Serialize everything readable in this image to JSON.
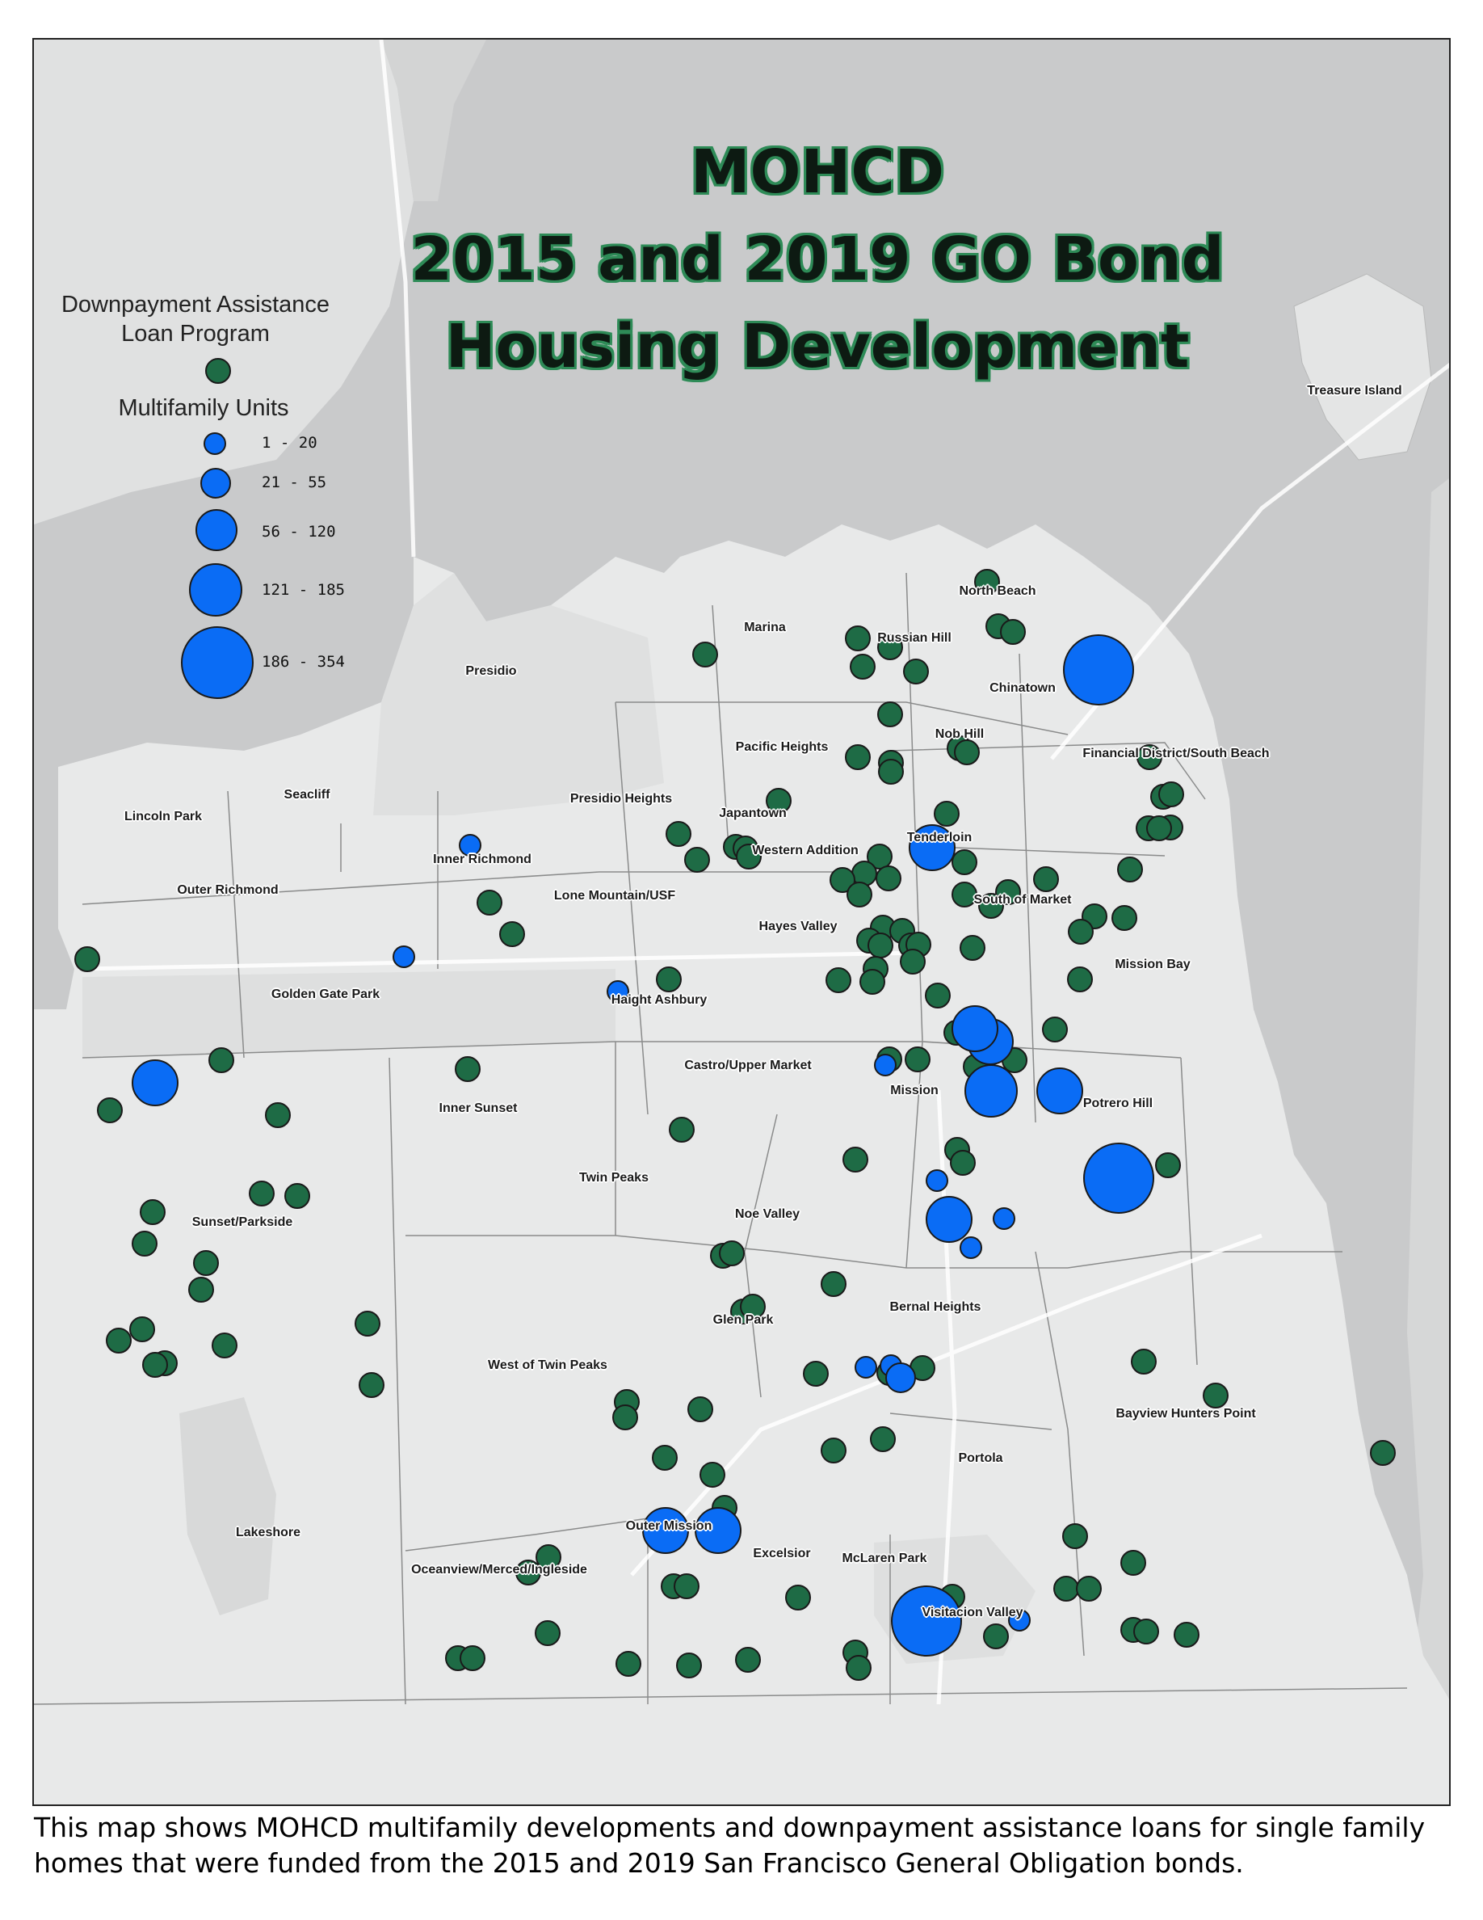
{
  "title": {
    "line1": "MOHCD",
    "line2": "2015 and 2019 GO Bond",
    "line3": "Housing Development"
  },
  "legend": {
    "dpa_heading": "Downpayment Assistance Loan Program",
    "multifamily_heading": "Multifamily Units",
    "classes": [
      "1 - 20",
      "21 - 55",
      "56 - 120",
      "121 - 185",
      "186 - 354"
    ]
  },
  "colors": {
    "water": "#c9cacb",
    "land": "#e8e9e9",
    "park": "#dcdddd",
    "dpa_green": "#1e6b45",
    "multifamily_blue": "#0a6cf5"
  },
  "neighborhoods": [
    "North Beach",
    "Russian Hill",
    "Marina",
    "Chinatown",
    "Presidio",
    "Nob Hill",
    "Pacific Heights",
    "Financial District/South Beach",
    "Seacliff",
    "Lincoln Park",
    "Presidio Heights",
    "Japantown",
    "Tenderloin",
    "Inner Richmond",
    "Western Addition",
    "Outer Richmond",
    "Lone Mountain/USF",
    "South of Market",
    "Hayes Valley",
    "Mission Bay",
    "Golden Gate Park",
    "Haight Ashbury",
    "Castro/Upper Market",
    "Mission",
    "Potrero Hill",
    "Inner Sunset",
    "Twin Peaks",
    "Sunset/Parkside",
    "Noe Valley",
    "Bernal Heights",
    "Glen Park",
    "West of Twin Peaks",
    "Bayview Hunters Point",
    "Portola",
    "Lakeshore",
    "Outer Mission",
    "Excelsior",
    "McLaren Park",
    "Oceanview/Merced/Ingleside",
    "Visitacion Valley",
    "Treasure Island"
  ],
  "caption": "This map shows MOHCD multifamily developments and downpayment assistance loans for single family homes that were funded from the 2015 and 2019 San Francisco General Obligation bonds."
}
